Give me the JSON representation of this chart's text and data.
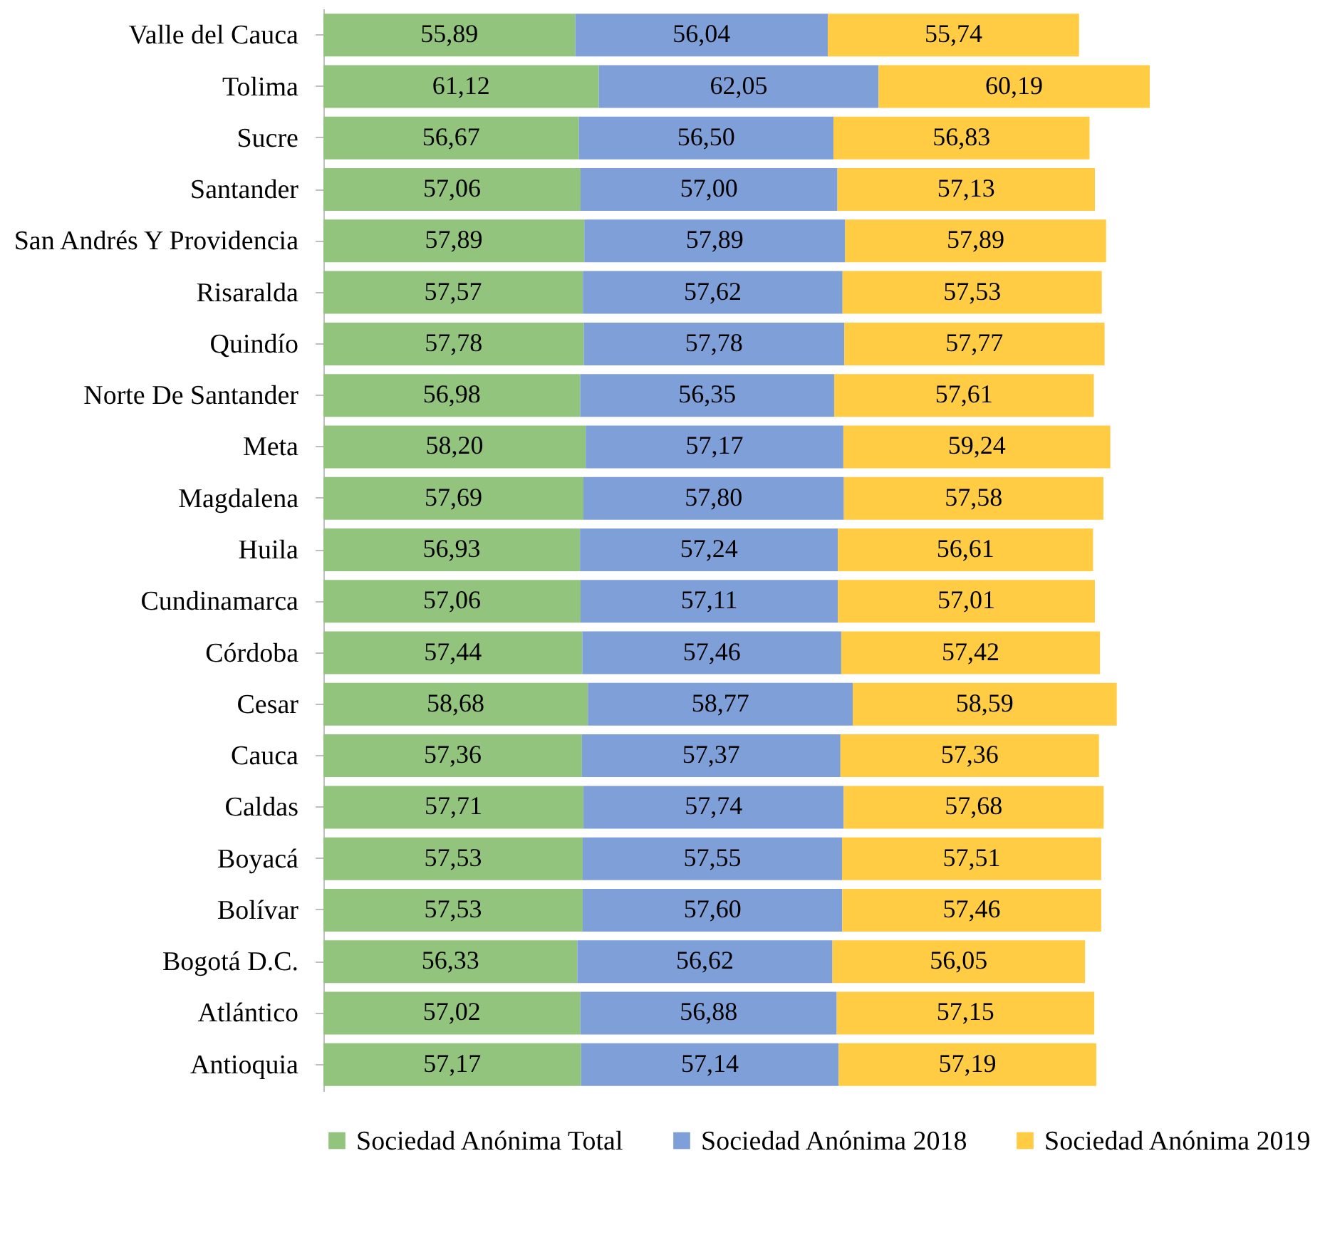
{
  "chart_data": {
    "type": "bar",
    "orientation": "horizontal",
    "stacked": true,
    "legend": "bottom",
    "categories": [
      "Valle del Cauca",
      "Tolima",
      "Sucre",
      "Santander",
      "San Andrés Y Providencia",
      "Risaralda",
      "Quindío",
      "Norte De Santander",
      "Meta",
      "Magdalena",
      "Huila",
      "Cundinamarca",
      "Córdoba",
      "Cesar",
      "Cauca",
      "Caldas",
      "Boyacá",
      "Bolívar",
      "Bogotá D.C.",
      "Atlántico",
      "Antioquia"
    ],
    "series": [
      {
        "name": "Sociedad Anónima Total",
        "color": "#93c47d",
        "values": [
          55.89,
          61.12,
          56.67,
          57.06,
          57.89,
          57.57,
          57.78,
          56.98,
          58.2,
          57.69,
          56.93,
          57.06,
          57.44,
          58.68,
          57.36,
          57.71,
          57.53,
          57.53,
          56.33,
          57.02,
          57.17
        ],
        "value_labels": [
          "55,89",
          "61,12",
          "56,67",
          "57,06",
          "57,89",
          "57,57",
          "57,78",
          "56,98",
          "58,20",
          "57,69",
          "56,93",
          "57,06",
          "57,44",
          "58,68",
          "57,36",
          "57,71",
          "57,53",
          "57,53",
          "56,33",
          "57,02",
          "57,17"
        ]
      },
      {
        "name": "Sociedad Anónima 2018",
        "color": "#7f9fd8",
        "values": [
          56.04,
          62.05,
          56.5,
          57.0,
          57.89,
          57.62,
          57.78,
          56.35,
          57.17,
          57.8,
          57.24,
          57.11,
          57.46,
          58.77,
          57.37,
          57.74,
          57.55,
          57.6,
          56.62,
          56.88,
          57.14
        ],
        "value_labels": [
          "56,04",
          "62,05",
          "56,50",
          "57,00",
          "57,89",
          "57,62",
          "57,78",
          "56,35",
          "57,17",
          "57,80",
          "57,24",
          "57,11",
          "57,46",
          "58,77",
          "57,37",
          "57,74",
          "57,55",
          "57,60",
          "56,62",
          "56,88",
          "57,14"
        ]
      },
      {
        "name": "Sociedad Anónima 2019",
        "color": "#ffcc44",
        "values": [
          55.74,
          60.19,
          56.83,
          57.13,
          57.89,
          57.53,
          57.77,
          57.61,
          59.24,
          57.58,
          56.61,
          57.01,
          57.42,
          58.59,
          57.36,
          57.68,
          57.51,
          57.46,
          56.05,
          57.15,
          57.19
        ],
        "value_labels": [
          "55,74",
          "60,19",
          "56,83",
          "57,13",
          "57,89",
          "57,53",
          "57,77",
          "57,61",
          "59,24",
          "57,58",
          "56,61",
          "57,01",
          "57,42",
          "58,59",
          "57,36",
          "57,68",
          "57,51",
          "57,46",
          "56,05",
          "57,15",
          "57,19"
        ]
      }
    ]
  }
}
